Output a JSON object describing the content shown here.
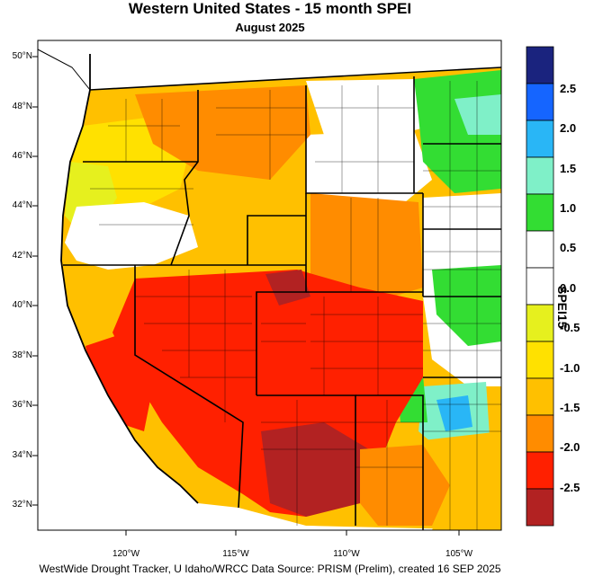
{
  "title": "Western United States - 15 month SPEI",
  "subtitle": "August 2025",
  "footer": "WestWide Drought Tracker, U Idaho/WRCC Data Source: PRISM (Prelim), created 16 SEP 2025",
  "colorbar": {
    "title": "SPEI15",
    "bins": [
      {
        "color": "#1a237e"
      },
      {
        "color": "#1565ff"
      },
      {
        "color": "#29b6f6"
      },
      {
        "color": "#7ff0c8"
      },
      {
        "color": "#33dd33"
      },
      {
        "color": "#ffffff"
      },
      {
        "color": "#ffffff"
      },
      {
        "color": "#e6f01e"
      },
      {
        "color": "#ffe100"
      },
      {
        "color": "#ffc000"
      },
      {
        "color": "#ff8c00"
      },
      {
        "color": "#ff2000"
      },
      {
        "color": "#b22222"
      }
    ],
    "labels": [
      "2.5",
      "2.0",
      "1.5",
      "1.0",
      "0.5",
      "0.0",
      "-0.5",
      "-1.0",
      "-1.5",
      "-2.0",
      "-2.5"
    ]
  },
  "latitude_labels": [
    "50°N",
    "48°N",
    "46°N",
    "44°N",
    "42°N",
    "40°N",
    "38°N",
    "36°N",
    "34°N",
    "32°N"
  ],
  "longitude_labels": [
    "120°W",
    "115°W",
    "110°W",
    "105°W"
  ]
}
